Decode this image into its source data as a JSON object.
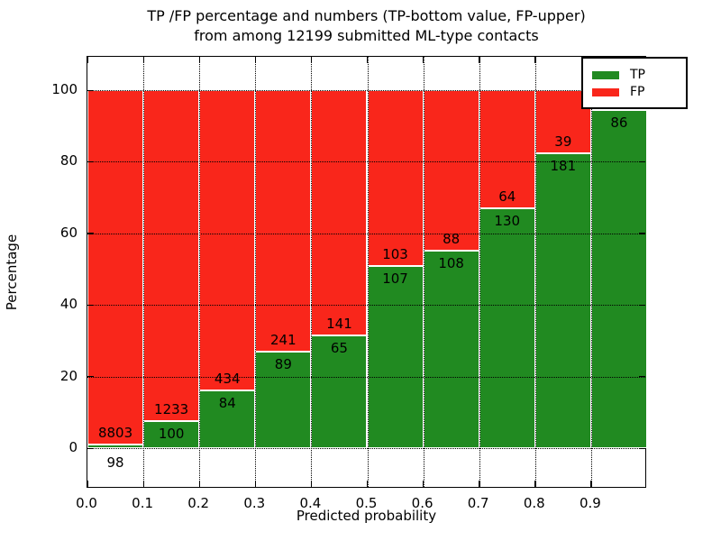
{
  "title": {
    "line1": "TP /FP percentage and numbers (TP-bottom value, FP-upper)",
    "line2": "from among 12199 submitted ML-type contacts"
  },
  "axes": {
    "ylabel": "Percentage",
    "xlabel": "Predicted probability",
    "ytick_labels": [
      "0",
      "20",
      "40",
      "60",
      "80",
      "100"
    ],
    "ytick_values": [
      0,
      20,
      40,
      60,
      80,
      100
    ],
    "xtick_labels": [
      "0.0",
      "0.1",
      "0.2",
      "0.3",
      "0.4",
      "0.5",
      "0.6",
      "0.7",
      "0.8",
      "0.9"
    ],
    "xtick_values": [
      0.0,
      0.1,
      0.2,
      0.3,
      0.4,
      0.5,
      0.6,
      0.7,
      0.8,
      0.9
    ]
  },
  "legend": {
    "items": [
      {
        "label": "TP",
        "color": "#218a21"
      },
      {
        "label": "FP",
        "color": "#f9261b"
      }
    ]
  },
  "colors": {
    "tp": "#218a21",
    "fp": "#f9261b",
    "grid": "#000000",
    "background": "#ffffff"
  },
  "chart_data": {
    "type": "bar",
    "subtype": "stacked-percentage",
    "title": "TP /FP percentage and numbers (TP-bottom value, FP-upper) from among 12199 submitted ML-type contacts",
    "xlabel": "Predicted probability",
    "ylabel": "Percentage",
    "xlim": [
      0.0,
      1.0
    ],
    "ylim": [
      -11,
      109
    ],
    "grid": true,
    "legend_position": "upper right",
    "total_contacts": 12199,
    "categories": [
      "0.0-0.1",
      "0.1-0.2",
      "0.2-0.3",
      "0.3-0.4",
      "0.4-0.5",
      "0.5-0.6",
      "0.6-0.7",
      "0.7-0.8",
      "0.8-0.9",
      "0.9-1.0"
    ],
    "bars": [
      {
        "bin_start": 0.0,
        "tp": 98,
        "fp": 8803,
        "tp_pct": 1.1
      },
      {
        "bin_start": 0.1,
        "tp": 100,
        "fp": 1233,
        "tp_pct": 7.5
      },
      {
        "bin_start": 0.2,
        "tp": 84,
        "fp": 434,
        "tp_pct": 16.2
      },
      {
        "bin_start": 0.3,
        "tp": 89,
        "fp": 241,
        "tp_pct": 27.0
      },
      {
        "bin_start": 0.4,
        "tp": 65,
        "fp": 141,
        "tp_pct": 31.6
      },
      {
        "bin_start": 0.5,
        "tp": 107,
        "fp": 103,
        "tp_pct": 51.0
      },
      {
        "bin_start": 0.6,
        "tp": 108,
        "fp": 88,
        "tp_pct": 55.1
      },
      {
        "bin_start": 0.7,
        "tp": 130,
        "fp": 64,
        "tp_pct": 67.0
      },
      {
        "bin_start": 0.8,
        "tp": 181,
        "fp": 39,
        "tp_pct": 82.3
      },
      {
        "bin_start": 0.9,
        "tp": 86,
        "fp": null,
        "tp_pct": 94.5
      }
    ]
  }
}
